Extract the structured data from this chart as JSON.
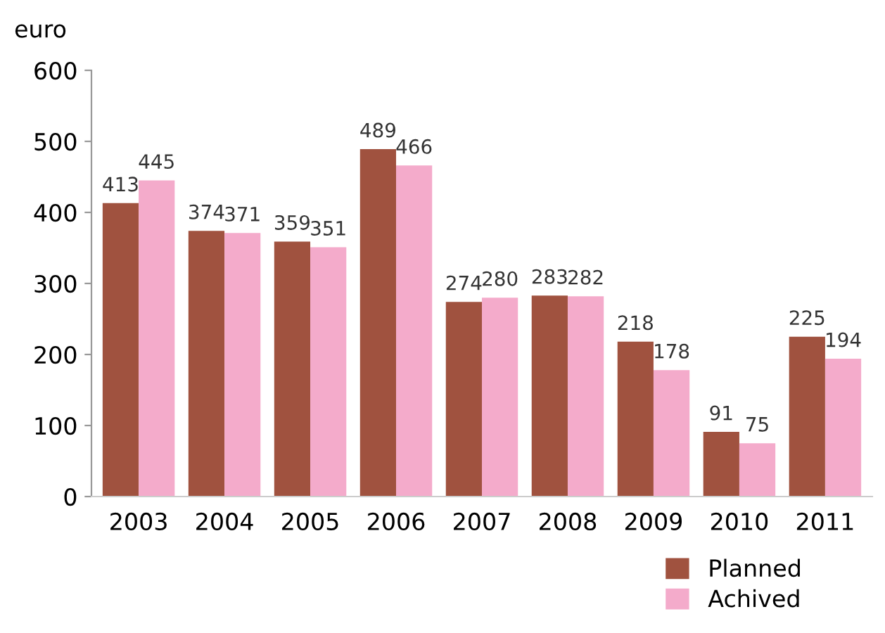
{
  "chart_data": {
    "type": "bar",
    "ylabel": "euro",
    "categories": [
      "2003",
      "2004",
      "2005",
      "2006",
      "2007",
      "2008",
      "2009",
      "2010",
      "2011"
    ],
    "series": [
      {
        "name": "Planned",
        "color": "#a0523f",
        "values": [
          413,
          374,
          359,
          489,
          274,
          283,
          218,
          91,
          225
        ]
      },
      {
        "name": "Achived",
        "color": "#f4abcb",
        "values": [
          445,
          371,
          351,
          466,
          280,
          282,
          178,
          75,
          194
        ]
      }
    ],
    "ylim": [
      0,
      600
    ],
    "yticks": [
      0,
      100,
      200,
      300,
      400,
      500,
      600
    ],
    "data_labels": true,
    "grid": false,
    "legend": "bottom right"
  }
}
